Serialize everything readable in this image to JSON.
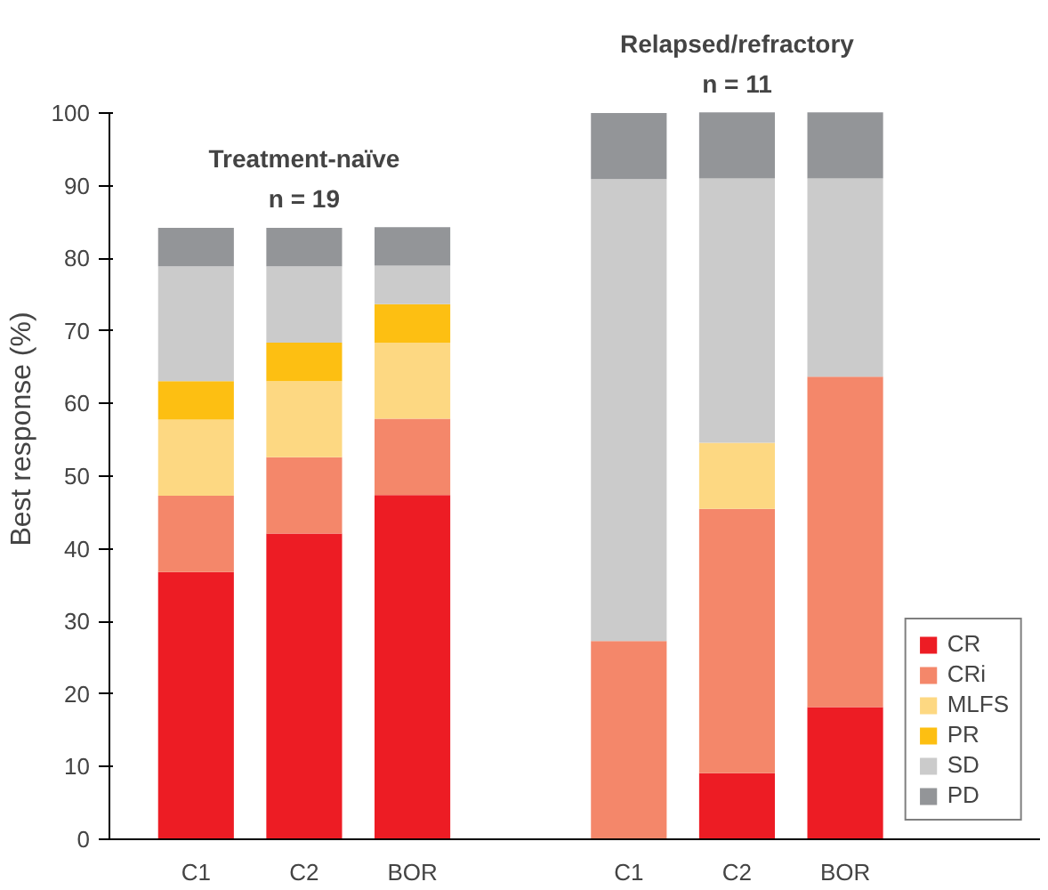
{
  "chart_data": {
    "type": "bar",
    "stacked": true,
    "ylabel": "Best response (%)",
    "categories": [
      "C1",
      "C2",
      "BOR",
      null,
      "C1",
      "C2",
      "BOR"
    ],
    "series": [
      {
        "name": "CR",
        "color": "#ed1c24",
        "values": [
          36.8,
          42.1,
          47.4,
          null,
          0,
          9.1,
          18.2
        ]
      },
      {
        "name": "CRi",
        "color": "#f4876a",
        "values": [
          10.5,
          10.5,
          10.5,
          null,
          27.3,
          36.4,
          45.5
        ]
      },
      {
        "name": "MLFS",
        "color": "#fdd882",
        "values": [
          10.5,
          10.5,
          10.5,
          null,
          0,
          9.1,
          0
        ]
      },
      {
        "name": "PR",
        "color": "#fdbf12",
        "values": [
          5.3,
          5.3,
          5.3,
          null,
          0,
          0,
          0
        ]
      },
      {
        "name": "SD",
        "color": "#cbcbcb",
        "values": [
          15.8,
          10.5,
          5.3,
          null,
          63.6,
          36.4,
          27.3
        ]
      },
      {
        "name": "PD",
        "color": "#939598",
        "values": [
          5.3,
          5.3,
          5.3,
          null,
          9.1,
          9.1,
          9.1
        ]
      }
    ],
    "annotations": [
      "Treatment-naïve\nn = 19",
      "Relapsed/refractory\nn = 11"
    ],
    "ylim": [
      0,
      100
    ],
    "yticks": [
      0,
      10,
      20,
      30,
      40,
      50,
      60,
      70,
      80,
      90,
      100
    ],
    "grid": false,
    "legend": "bottom right"
  }
}
